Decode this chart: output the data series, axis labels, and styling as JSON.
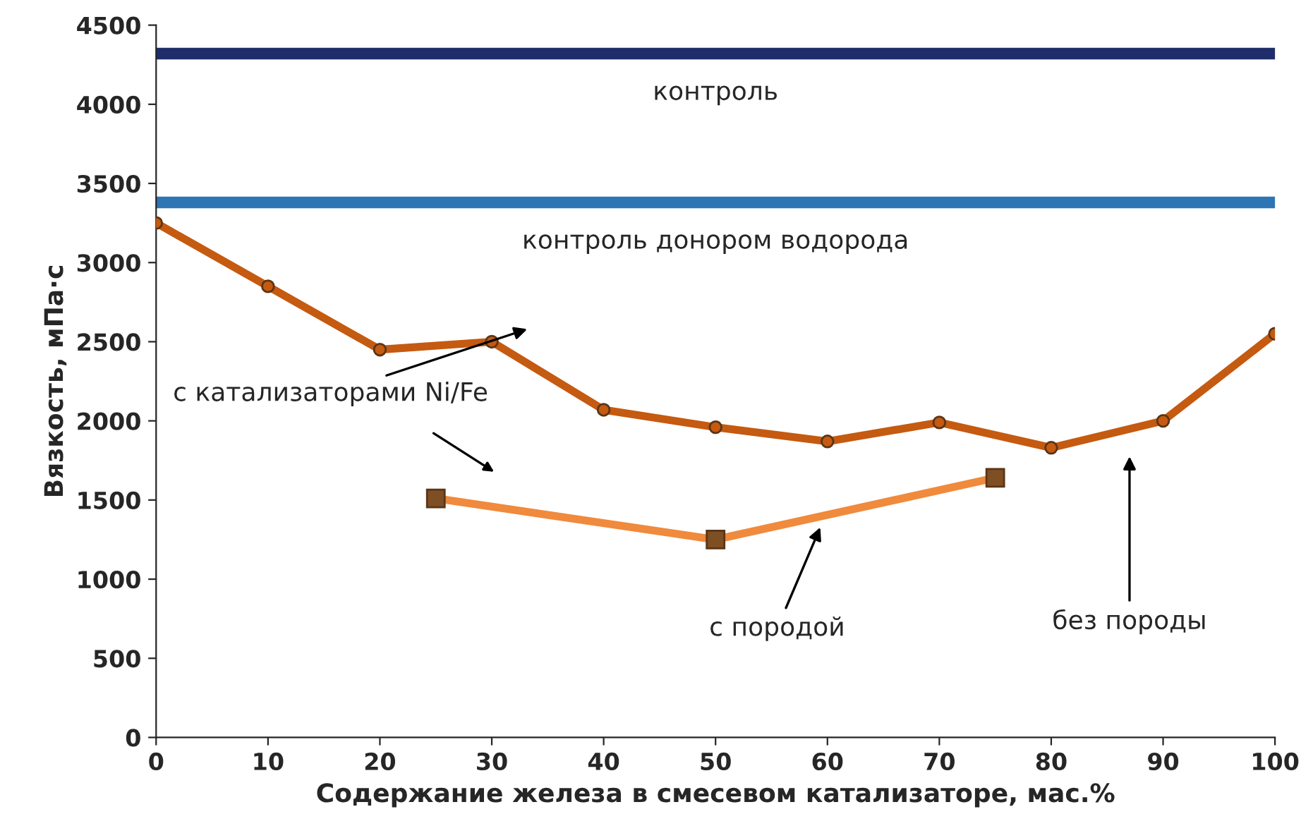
{
  "chart_data": {
    "type": "line",
    "xlabel": "Содержание железа в смесевом катализаторе, мас.%",
    "ylabel": "Вязкость, мПа·с",
    "xlim": [
      0,
      100
    ],
    "xticks": [
      0,
      10,
      20,
      30,
      40,
      50,
      60,
      70,
      80,
      90,
      100
    ],
    "ylim": [
      0,
      4500
    ],
    "yticks": [
      0,
      500,
      1000,
      1500,
      2000,
      2500,
      3000,
      3500,
      4000,
      4500
    ],
    "series": [
      {
        "name": "без породы",
        "color": "#c55a11",
        "marker": "circle",
        "x": [
          0,
          10,
          20,
          30,
          40,
          50,
          60,
          70,
          80,
          90,
          100
        ],
        "values": [
          3250,
          2850,
          2450,
          2500,
          2070,
          1960,
          1870,
          1990,
          1830,
          2000,
          2550
        ]
      },
      {
        "name": "с породой",
        "color": "#f08a3c",
        "marker": "square",
        "x": [
          25,
          50,
          75
        ],
        "values": [
          1510,
          1250,
          1640
        ]
      }
    ],
    "ref_lines": [
      {
        "axis": "y",
        "value": 4320,
        "label": "контроль",
        "color": "#1f2d6b"
      },
      {
        "axis": "y",
        "value": 3380,
        "label": "контроль донором водорода",
        "color": "#2e75b6"
      }
    ],
    "annotations": [
      "с катализаторами Ni/Fe"
    ],
    "grid": false,
    "legend": false,
    "line_style": "solid"
  }
}
